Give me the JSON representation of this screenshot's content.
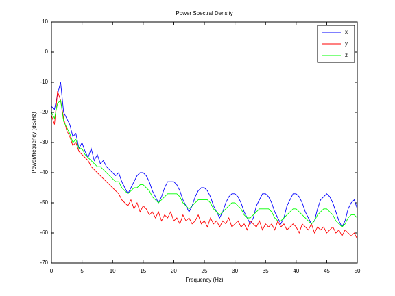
{
  "chart_data": {
    "type": "line",
    "title": "Power Spectral Density",
    "xlabel": "Frequency (Hz)",
    "ylabel": "Power/frequency (dB/Hz)",
    "xlim": [
      0,
      50
    ],
    "ylim": [
      -70,
      10
    ],
    "xticks": [
      0,
      5,
      10,
      15,
      20,
      25,
      30,
      35,
      40,
      45,
      50
    ],
    "yticks": [
      -70,
      -60,
      -50,
      -40,
      -30,
      -20,
      -10,
      0,
      10
    ],
    "grid": false,
    "legend": "upper-right",
    "x": [
      0,
      0.5,
      1,
      1.5,
      2,
      2.5,
      3,
      3.5,
      4,
      4.5,
      5,
      5.5,
      6,
      6.5,
      7,
      7.5,
      8,
      8.5,
      9,
      9.5,
      10,
      10.5,
      11,
      11.5,
      12,
      12.5,
      13,
      13.5,
      14,
      14.5,
      15,
      15.5,
      16,
      16.5,
      17,
      17.5,
      18,
      18.5,
      19,
      19.5,
      20,
      20.5,
      21,
      21.5,
      22,
      22.5,
      23,
      23.5,
      24,
      24.5,
      25,
      25.5,
      26,
      26.5,
      27,
      27.5,
      28,
      28.5,
      29,
      29.5,
      30,
      30.5,
      31,
      31.5,
      32,
      32.5,
      33,
      33.5,
      34,
      34.5,
      35,
      35.5,
      36,
      36.5,
      37,
      37.5,
      38,
      38.5,
      39,
      39.5,
      40,
      40.5,
      41,
      41.5,
      42,
      42.5,
      43,
      43.5,
      44,
      44.5,
      45,
      45.5,
      46,
      46.5,
      47,
      47.5,
      48,
      48.5,
      49,
      49.5,
      50
    ],
    "series": [
      {
        "name": "x",
        "color": "#0000ff",
        "values": [
          -18,
          -19,
          -14,
          -10,
          -20,
          -22,
          -24,
          -28,
          -27,
          -32,
          -30,
          -33,
          -35,
          -32,
          -36,
          -34,
          -37,
          -36,
          -38,
          -39,
          -40,
          -41,
          -40,
          -43,
          -45,
          -47,
          -45,
          -43,
          -41,
          -40,
          -40,
          -41,
          -43,
          -46,
          -48,
          -50,
          -48,
          -45,
          -43,
          -43,
          -43,
          -44,
          -46,
          -49,
          -51,
          -53,
          -51,
          -48,
          -46,
          -45,
          -45,
          -46,
          -48,
          -51,
          -53,
          -55,
          -53,
          -50,
          -48,
          -47,
          -47,
          -48,
          -50,
          -53,
          -55,
          -57,
          -55,
          -51,
          -49,
          -47,
          -47,
          -48,
          -50,
          -53,
          -55,
          -57,
          -55,
          -51,
          -49,
          -47,
          -47,
          -48,
          -50,
          -53,
          -55,
          -57,
          -56,
          -52,
          -49,
          -48,
          -47,
          -48,
          -50,
          -53,
          -56,
          -58,
          -56,
          -52,
          -50,
          -49,
          -52
        ]
      },
      {
        "name": "y",
        "color": "#ff0000",
        "values": [
          -21,
          -24,
          -13,
          -16,
          -22,
          -26,
          -28,
          -31,
          -30,
          -33,
          -34,
          -35,
          -36,
          -38,
          -39,
          -40,
          -41,
          -42,
          -43,
          -44,
          -45,
          -46,
          -47,
          -49,
          -50,
          -51,
          -49,
          -52,
          -50,
          -53,
          -51,
          -52,
          -54,
          -53,
          -55,
          -53,
          -56,
          -54,
          -55,
          -53,
          -56,
          -55,
          -57,
          -54,
          -56,
          -55,
          -57,
          -56,
          -54,
          -57,
          -56,
          -58,
          -55,
          -57,
          -56,
          -58,
          -56,
          -57,
          -55,
          -58,
          -57,
          -56,
          -58,
          -57,
          -59,
          -56,
          -57,
          -58,
          -56,
          -59,
          -57,
          -58,
          -57,
          -59,
          -56,
          -58,
          -57,
          -59,
          -58,
          -57,
          -58,
          -60,
          -57,
          -58,
          -59,
          -57,
          -60,
          -58,
          -59,
          -58,
          -60,
          -59,
          -58,
          -60,
          -59,
          -61,
          -59,
          -60,
          -61,
          -60,
          -62
        ]
      },
      {
        "name": "z",
        "color": "#00ff00",
        "values": [
          -20,
          -22,
          -17,
          -16,
          -23,
          -25,
          -27,
          -30,
          -29,
          -32,
          -32,
          -34,
          -35,
          -36,
          -37,
          -38,
          -38,
          -39,
          -40,
          -41,
          -42,
          -43,
          -43,
          -45,
          -46,
          -47,
          -46,
          -45,
          -45,
          -44,
          -44,
          -45,
          -46,
          -48,
          -49,
          -50,
          -49,
          -48,
          -47,
          -47,
          -47,
          -47,
          -48,
          -50,
          -51,
          -52,
          -51,
          -50,
          -49,
          -49,
          -49,
          -49,
          -50,
          -52,
          -53,
          -54,
          -53,
          -52,
          -51,
          -50,
          -50,
          -51,
          -52,
          -54,
          -55,
          -55,
          -54,
          -53,
          -52,
          -52,
          -52,
          -52,
          -53,
          -55,
          -56,
          -56,
          -55,
          -54,
          -53,
          -52,
          -52,
          -53,
          -54,
          -55,
          -56,
          -57,
          -56,
          -54,
          -53,
          -52,
          -52,
          -53,
          -54,
          -56,
          -57,
          -58,
          -57,
          -55,
          -54,
          -54,
          -55
        ]
      }
    ]
  }
}
